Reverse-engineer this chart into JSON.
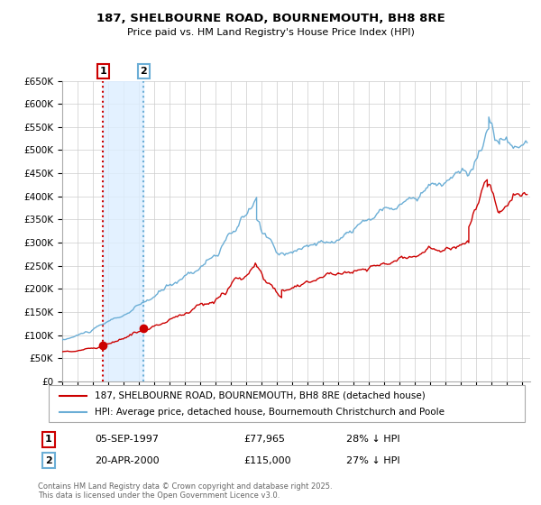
{
  "title_line1": "187, SHELBOURNE ROAD, BOURNEMOUTH, BH8 8RE",
  "title_line2": "Price paid vs. HM Land Registry's House Price Index (HPI)",
  "legend_line1": "187, SHELBOURNE ROAD, BOURNEMOUTH, BH8 8RE (detached house)",
  "legend_line2": "HPI: Average price, detached house, Bournemouth Christchurch and Poole",
  "sale1_label": "1",
  "sale1_date": "05-SEP-1997",
  "sale1_price": "£77,965",
  "sale1_hpi": "28% ↓ HPI",
  "sale2_label": "2",
  "sale2_date": "20-APR-2000",
  "sale2_price": "£115,000",
  "sale2_hpi": "27% ↓ HPI",
  "sale1_year": 1997.67,
  "sale1_value": 77965,
  "sale2_year": 2000.3,
  "sale2_value": 115000,
  "hpi_color": "#6baed6",
  "price_color": "#cc0000",
  "vline1_color": "#cc0000",
  "vline2_color": "#6baed6",
  "bg_shade_color": "#ddeeff",
  "grid_color": "#cccccc",
  "axis_bg": "#ffffff",
  "footer_text": "Contains HM Land Registry data © Crown copyright and database right 2025.\nThis data is licensed under the Open Government Licence v3.0.",
  "ylim_max": 650000,
  "ylim_min": 0,
  "xmin": 1995,
  "xmax": 2025.5
}
